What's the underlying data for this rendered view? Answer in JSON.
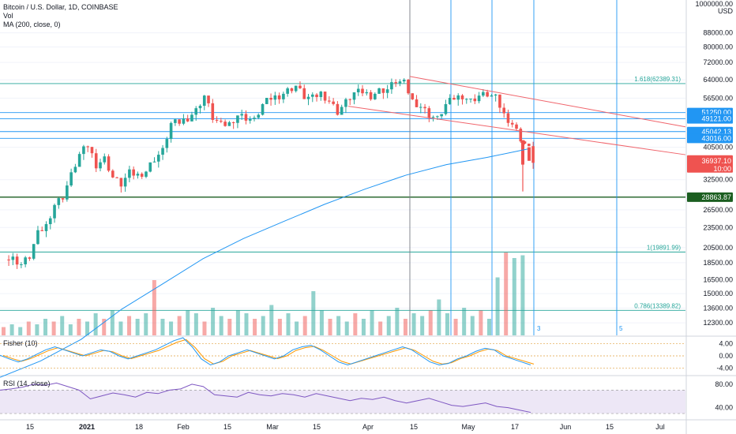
{
  "chart_data": {
    "type": "candlestick",
    "title": "Bitcoin / U.S. Dollar, 1D, COINBASE",
    "indicators_legend": [
      "Vol",
      "MA (200, close, 0)"
    ],
    "fisher_label": "Fisher (10)",
    "rsi_label": "RSI (14, close)",
    "price_axis": {
      "scale": "log",
      "currency": "USD",
      "ticks": [
        "1000000.00",
        "88000.00",
        "80000.00",
        "72000.00",
        "64000.00",
        "56500.00",
        "51250.00",
        "49121.00",
        "45042.13",
        "43016.00",
        "40500.00",
        "36937.10",
        "32500.00",
        "28863.87",
        "26500.00",
        "23500.00",
        "20500.00",
        "18500.00",
        "16500.00",
        "15000.00",
        "13600.00",
        "12300.00"
      ]
    },
    "price_tick_values": [
      88000,
      80000,
      72000,
      64000,
      56500,
      40500,
      32500,
      26500,
      23500,
      20500,
      18500,
      16500,
      15000,
      13600,
      12300
    ],
    "x_axis_ticks": [
      "15",
      "2021",
      "18",
      "Feb",
      "15",
      "Mar",
      "15",
      "Apr",
      "15",
      "May",
      "17",
      "Jun",
      "15",
      "Jul"
    ],
    "horizontal_levels": [
      {
        "label": "1.618(62389.31)",
        "value": 62389.31
      },
      {
        "label": "51250.00",
        "value": 51250,
        "badge": true
      },
      {
        "label": "49121.00",
        "value": 49121,
        "badge": true
      },
      {
        "label": "45042.13",
        "value": 45042.13,
        "badge": true
      },
      {
        "label": "43016.00",
        "value": 43016,
        "badge": true
      },
      {
        "label": "1(19891.99)",
        "value": 19891.99
      },
      {
        "label": "0.786(13389.82)",
        "value": 13389.82
      },
      {
        "label": "28863.87",
        "value": 28863.87,
        "badge": true,
        "dark": true
      }
    ],
    "current_price": {
      "value": "36937.10",
      "countdown": "10:00"
    },
    "vertical_markers": [
      "3",
      "5"
    ],
    "fisher_axis": [
      "4.00",
      "0.00",
      "-4.00"
    ],
    "rsi_axis": [
      "80.00",
      "40.00"
    ],
    "colors": {
      "up": "#26a69a",
      "down": "#ef5350",
      "ma": "#2196f3",
      "level": "#26a69a",
      "vline": "#2196f3",
      "channel": "#f0656c",
      "fisher_a": "#2196f3",
      "fisher_b": "#ff9800",
      "rsi": "#7e57c2",
      "rsi_band": "#ede7f6"
    },
    "ma_values": [
      8500,
      9500,
      11000,
      13500,
      16000,
      19000,
      21800,
      24500,
      27500,
      30500,
      33500,
      36000,
      37800,
      40000
    ],
    "price_series": [
      [
        0,
        18900
      ],
      [
        2,
        19000
      ],
      [
        4,
        18300
      ],
      [
        6,
        19300
      ],
      [
        8,
        22500
      ],
      [
        10,
        23800
      ],
      [
        12,
        27500
      ],
      [
        14,
        29000
      ],
      [
        16,
        33500
      ],
      [
        18,
        38500
      ],
      [
        20,
        41000
      ],
      [
        22,
        36000
      ],
      [
        24,
        37500
      ],
      [
        26,
        33000
      ],
      [
        28,
        31500
      ],
      [
        30,
        34000
      ],
      [
        32,
        33500
      ],
      [
        34,
        34500
      ],
      [
        36,
        37500
      ],
      [
        38,
        39500
      ],
      [
        40,
        47500
      ],
      [
        42,
        48000
      ],
      [
        44,
        49500
      ],
      [
        46,
        52000
      ],
      [
        48,
        57500
      ],
      [
        50,
        49500
      ],
      [
        52,
        47000
      ],
      [
        54,
        47500
      ],
      [
        56,
        50500
      ],
      [
        58,
        49500
      ],
      [
        60,
        48500
      ],
      [
        62,
        54000
      ],
      [
        64,
        56500
      ],
      [
        66,
        57500
      ],
      [
        68,
        59500
      ],
      [
        70,
        61500
      ],
      [
        72,
        57000
      ],
      [
        74,
        56500
      ],
      [
        76,
        58500
      ],
      [
        78,
        55500
      ],
      [
        80,
        51500
      ],
      [
        82,
        55000
      ],
      [
        84,
        58500
      ],
      [
        86,
        59000
      ],
      [
        88,
        57500
      ],
      [
        90,
        59500
      ],
      [
        92,
        60000
      ],
      [
        94,
        63500
      ],
      [
        96,
        62500
      ],
      [
        98,
        55500
      ],
      [
        100,
        53500
      ],
      [
        102,
        50500
      ],
      [
        104,
        49000
      ],
      [
        106,
        54000
      ],
      [
        108,
        56500
      ],
      [
        110,
        57500
      ],
      [
        112,
        55500
      ],
      [
        114,
        57500
      ],
      [
        116,
        58000
      ],
      [
        118,
        56500
      ],
      [
        120,
        50500
      ],
      [
        122,
        47500
      ],
      [
        124,
        43000
      ],
      [
        126,
        40000
      ],
      [
        127,
        37000
      ]
    ],
    "volume_series": [
      3,
      4,
      3,
      5,
      4,
      6,
      5,
      7,
      4,
      6,
      5,
      8,
      6,
      9,
      5,
      7,
      6,
      8,
      20,
      6,
      5,
      7,
      9,
      8,
      5,
      10,
      7,
      6,
      9,
      8,
      6,
      7,
      11,
      6,
      8,
      5,
      7,
      16,
      9,
      6,
      7,
      5,
      8,
      6,
      9,
      5,
      7,
      10,
      6,
      8,
      7,
      9,
      13,
      8,
      6,
      10,
      7,
      9,
      6,
      21,
      30,
      28,
      29
    ],
    "fisher_series": [
      0.2,
      -1,
      -2,
      -1,
      0.5,
      2,
      3,
      2,
      1,
      0,
      1,
      2,
      1.5,
      0,
      -1,
      0,
      1,
      2,
      3.5,
      5,
      6,
      3,
      -1,
      -3,
      -2,
      0,
      1,
      2,
      1,
      0,
      -1,
      0,
      2,
      3,
      3.5,
      2,
      0,
      -2,
      -3,
      -2,
      -1,
      0,
      1,
      2,
      3,
      2,
      0,
      -2,
      -3,
      -2.5,
      -1,
      0,
      1.5,
      2.5,
      2,
      0,
      -1,
      -2,
      -3
    ],
    "rsi_series": [
      70,
      72,
      75,
      80,
      78,
      82,
      76,
      70,
      55,
      60,
      65,
      62,
      58,
      66,
      64,
      70,
      72,
      80,
      76,
      62,
      60,
      58,
      66,
      62,
      60,
      64,
      62,
      58,
      64,
      60,
      56,
      52,
      56,
      54,
      58,
      52,
      48,
      52,
      56,
      50,
      44,
      42,
      45,
      48,
      42,
      40,
      36,
      32
    ]
  }
}
